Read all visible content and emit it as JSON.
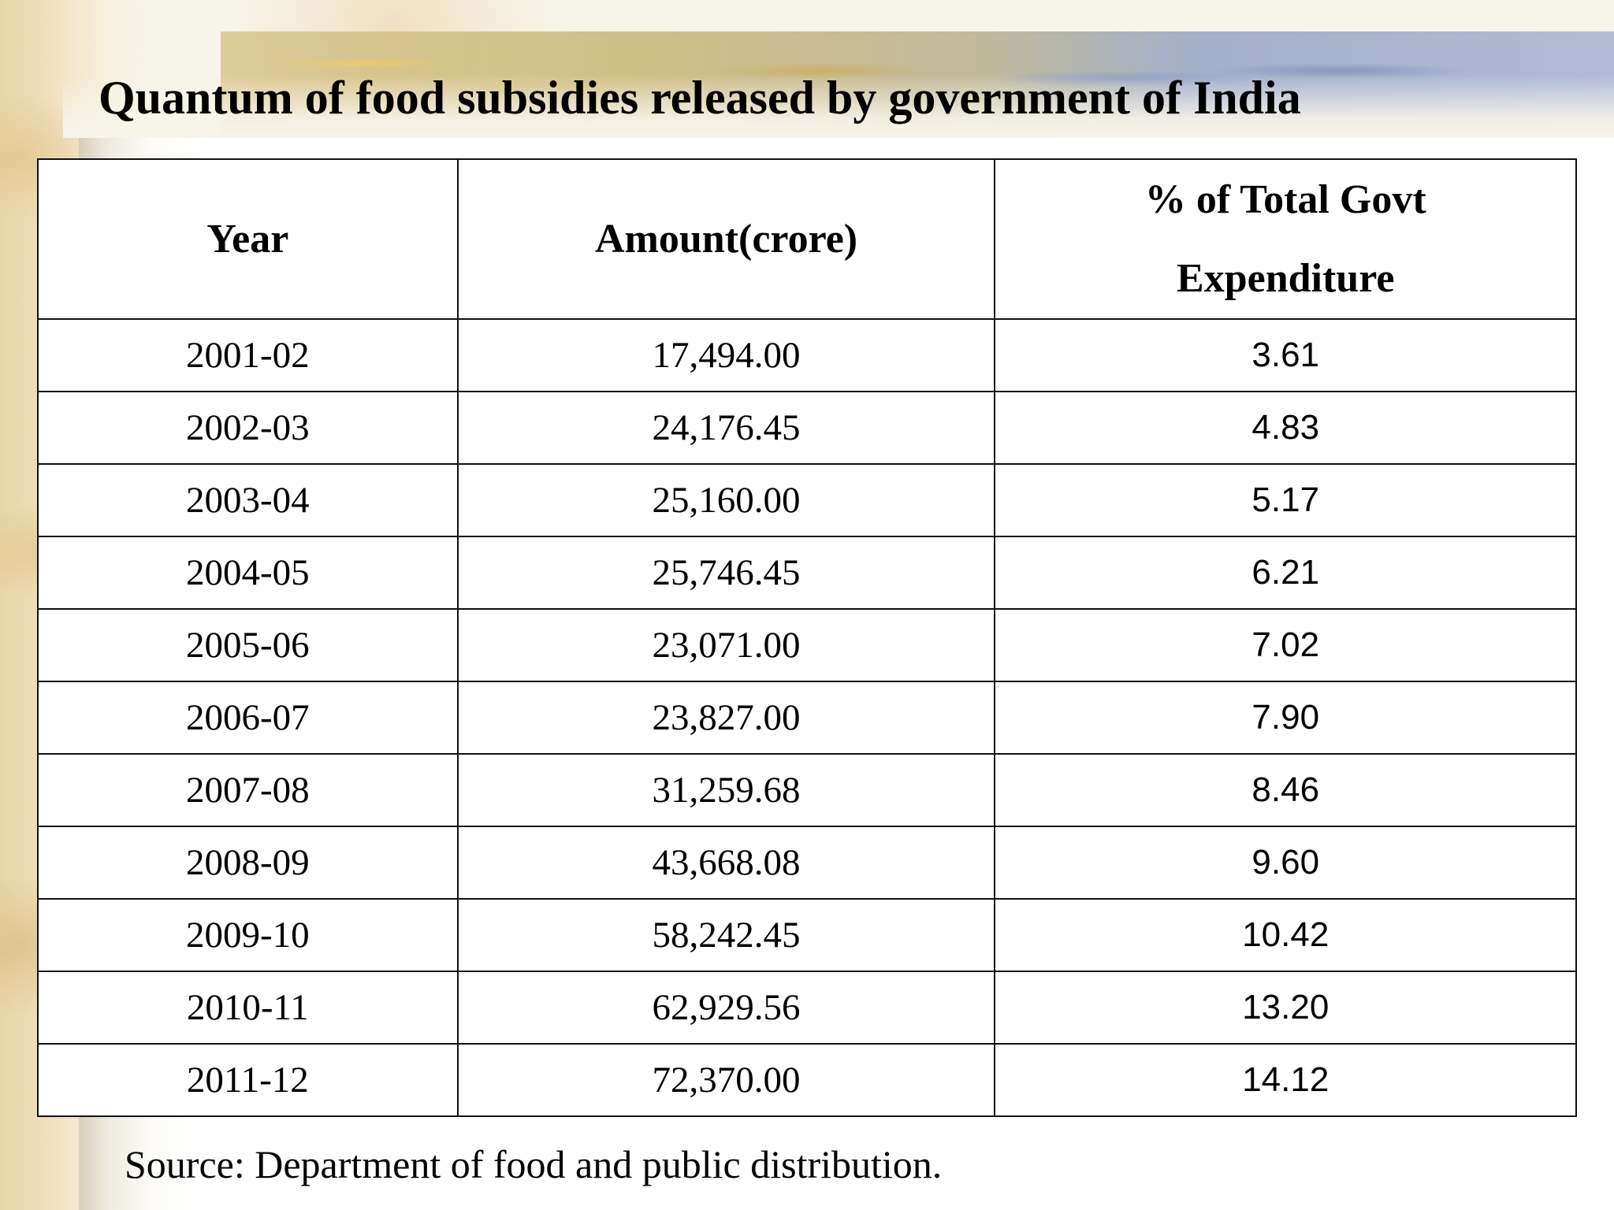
{
  "slide": {
    "title": "Quantum of food subsidies released by government of India",
    "source": "Source: Department of food and public distribution."
  },
  "table": {
    "headers": {
      "year": "Year",
      "amount": "Amount(crore)",
      "pct_line1": "% of Total Govt",
      "pct_line2": "Expenditure"
    },
    "rows": [
      {
        "year": "2001-02",
        "amount": "17,494.00",
        "pct": "3.61"
      },
      {
        "year": "2002-03",
        "amount": "24,176.45",
        "pct": "4.83"
      },
      {
        "year": "2003-04",
        "amount": "25,160.00",
        "pct": "5.17"
      },
      {
        "year": "2004-05",
        "amount": "25,746.45",
        "pct": "6.21"
      },
      {
        "year": "2005-06",
        "amount": "23,071.00",
        "pct": "7.02"
      },
      {
        "year": "2006-07",
        "amount": "23,827.00",
        "pct": "7.90"
      },
      {
        "year": "2007-08",
        "amount": "31,259.68",
        "pct": "8.46"
      },
      {
        "year": "2008-09",
        "amount": "43,668.08",
        "pct": "9.60"
      },
      {
        "year": "2009-10",
        "amount": "58,242.45",
        "pct": "10.42"
      },
      {
        "year": "2010-11",
        "amount": "62,929.56",
        "pct": "13.20"
      },
      {
        "year": "2011-12",
        "amount": "72,370.00",
        "pct": "14.12"
      }
    ]
  }
}
